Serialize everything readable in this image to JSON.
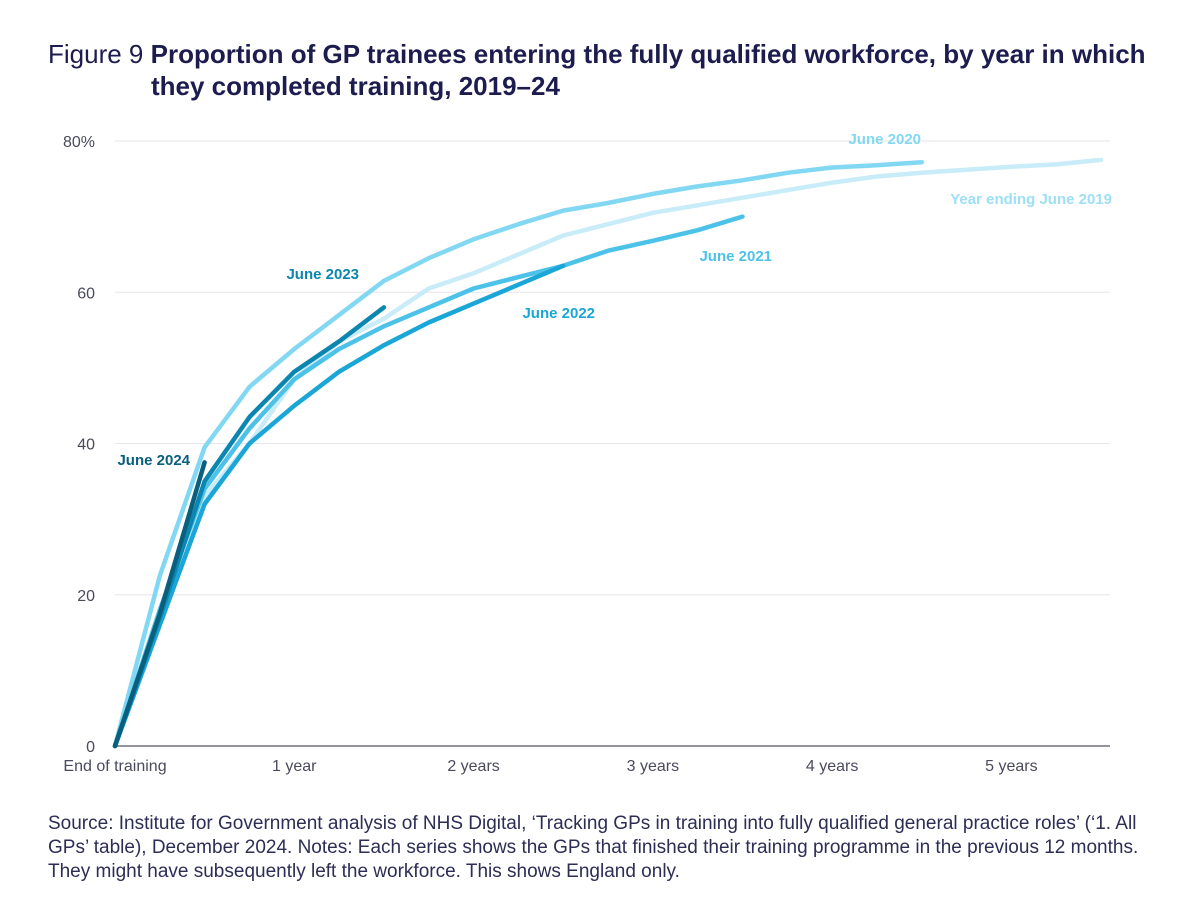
{
  "header": {
    "figure_label": "Figure 9",
    "title_line1": "Proportion of GP trainees entering the fully qualified workforce, by year in which",
    "title_line2": "they completed training, 2019–24"
  },
  "source_text": "Source: Institute for Government analysis of NHS Digital, ‘Tracking GPs in training into fully qualified general practice roles’ (‘1. All GPs’ table), December 2024. Notes: Each series shows the GPs that finished their training programme in the previous 12 months. They might have subsequently left the workforce. This shows England only.",
  "chart_data": {
    "type": "line",
    "x_tick_labels": [
      "End of training",
      "1 year",
      "2 years",
      "3 years",
      "4 years",
      "5 years"
    ],
    "x_ticks": [
      0,
      1,
      2,
      3,
      4,
      5
    ],
    "xlim": [
      0,
      5.55
    ],
    "y_tick_labels": [
      "0",
      "20",
      "40",
      "60",
      "80%"
    ],
    "y_ticks": [
      0,
      20,
      40,
      60,
      80
    ],
    "ylim": [
      0,
      80
    ],
    "grid": true,
    "series": [
      {
        "name": "Year ending June 2019",
        "color": "#c8ecf8",
        "x": [
          0,
          0.25,
          0.5,
          0.75,
          1.0,
          1.25,
          1.5,
          1.75,
          2.0,
          2.25,
          2.5,
          2.75,
          3.0,
          3.25,
          3.5,
          3.75,
          4.0,
          4.25,
          4.5,
          4.75,
          5.0,
          5.25,
          5.5
        ],
        "values": [
          0,
          18,
          33,
          40,
          48.5,
          53.5,
          56.5,
          60.5,
          62.5,
          65,
          67.5,
          69,
          70.5,
          71.5,
          72.5,
          73.5,
          74.5,
          75.3,
          75.8,
          76.2,
          76.6,
          76.9,
          77.5
        ]
      },
      {
        "name": "June 2020",
        "color": "#82d8f2",
        "x": [
          0,
          0.25,
          0.5,
          0.75,
          1.0,
          1.25,
          1.5,
          1.75,
          2.0,
          2.25,
          2.5,
          2.75,
          3.0,
          3.25,
          3.5,
          3.75,
          4.0,
          4.25,
          4.5
        ],
        "values": [
          0,
          22.5,
          39.5,
          47.5,
          52.5,
          57,
          61.5,
          64.5,
          67,
          69,
          70.8,
          71.8,
          73,
          74,
          74.8,
          75.8,
          76.5,
          76.8,
          77.2
        ]
      },
      {
        "name": "June 2021",
        "color": "#4cc2e8",
        "x": [
          0,
          0.25,
          0.5,
          0.75,
          1.0,
          1.25,
          1.5,
          1.75,
          2.0,
          2.25,
          2.5,
          2.75,
          3.0,
          3.25,
          3.5
        ],
        "values": [
          0,
          18,
          34,
          42,
          48.5,
          52.5,
          55.5,
          58,
          60.5,
          62,
          63.5,
          65.5,
          66.8,
          68.2,
          70
        ]
      },
      {
        "name": "June 2022",
        "color": "#1aa6d6",
        "x": [
          0,
          0.25,
          0.5,
          0.75,
          1.0,
          1.25,
          1.5,
          1.75,
          2.0,
          2.25,
          2.5
        ],
        "values": [
          0,
          16,
          32,
          40,
          45,
          49.5,
          53,
          56,
          58.5,
          61,
          63.5
        ]
      },
      {
        "name": "June 2023",
        "color": "#0b86b0",
        "x": [
          0,
          0.25,
          0.5,
          0.75,
          1.0,
          1.25,
          1.5
        ],
        "values": [
          0,
          17,
          35,
          43.5,
          49.5,
          53.5,
          58
        ]
      },
      {
        "name": "June 2024",
        "color": "#0a5f7e",
        "x": [
          0,
          0.25,
          0.5
        ],
        "values": [
          0,
          17.5,
          37.5
        ]
      }
    ]
  }
}
